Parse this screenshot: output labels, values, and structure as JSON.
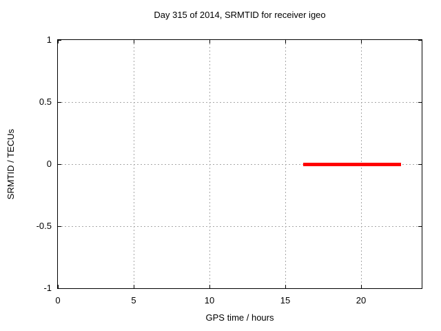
{
  "chart_data": {
    "type": "scatter",
    "title": "Day 315 of 2014, SRMTID for receiver igeo",
    "xlabel": "GPS time / hours",
    "ylabel": "SRMTID / TECUs",
    "xlim": [
      0,
      24
    ],
    "ylim": [
      -1,
      1
    ],
    "xticks": [
      0,
      5,
      10,
      15,
      20
    ],
    "yticks": [
      1,
      0.5,
      0,
      -0.5,
      -1
    ],
    "grid": true,
    "grid_style": "dashed",
    "grid_color": "#a6a6a6",
    "background": "#ffffff",
    "legend": "none",
    "series": [
      {
        "name": "SRMTID",
        "color": "#ff0000",
        "marker": "filled-square",
        "y_value": 0,
        "x_segments_hours": [
          [
            16.28,
            16.38
          ],
          [
            16.55,
            17.37
          ],
          [
            17.42,
            17.84
          ],
          [
            17.92,
            18.42
          ],
          [
            18.51,
            19.06
          ],
          [
            19.18,
            19.42
          ],
          [
            19.5,
            20.05
          ],
          [
            20.14,
            20.42
          ],
          [
            20.58,
            21.23
          ],
          [
            21.33,
            22.28
          ],
          [
            22.45,
            22.56
          ]
        ]
      }
    ]
  }
}
